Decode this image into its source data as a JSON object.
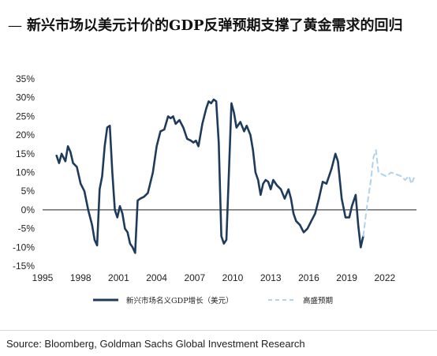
{
  "title_prefix": "—",
  "title": "新兴市场以美元计价的GDP反弹预期支撑了黄金需求的回归",
  "source": "Source: Bloomberg, Goldman Sachs Global Investment Research",
  "chart_data": {
    "type": "line",
    "ylim": [
      -15,
      35
    ],
    "yticks": [
      -15,
      -10,
      -5,
      0,
      5,
      10,
      15,
      20,
      25,
      30,
      35
    ],
    "ytick_labels": [
      "-15%",
      "-10%",
      "-5%",
      "0%",
      "5%",
      "10%",
      "15%",
      "20%",
      "25%",
      "30%",
      "35%"
    ],
    "xlim": [
      1995,
      2024.5
    ],
    "xticks": [
      1995,
      1998,
      2001,
      2004,
      2007,
      2010,
      2013,
      2016,
      2019,
      2022
    ],
    "xtick_labels": [
      "1995",
      "1998",
      "2001",
      "2004",
      "2007",
      "2010",
      "2013",
      "2016",
      "2019",
      "2022"
    ],
    "legend_position": "bottom",
    "series": [
      {
        "name": "新兴市场名义GDP增长（美元）",
        "style": "solid",
        "color": "#1f3b5c",
        "points": [
          [
            1996.1,
            14.5
          ],
          [
            1996.3,
            12.5
          ],
          [
            1996.5,
            15
          ],
          [
            1996.8,
            13
          ],
          [
            1997.0,
            17
          ],
          [
            1997.2,
            15.5
          ],
          [
            1997.4,
            12.5
          ],
          [
            1997.7,
            11.5
          ],
          [
            1998.0,
            7
          ],
          [
            1998.3,
            5
          ],
          [
            1998.6,
            0
          ],
          [
            1998.9,
            -4
          ],
          [
            1999.1,
            -8
          ],
          [
            1999.3,
            -9.5
          ],
          [
            1999.5,
            5.5
          ],
          [
            1999.7,
            9
          ],
          [
            1999.9,
            17
          ],
          [
            2000.1,
            22
          ],
          [
            2000.3,
            22.5
          ],
          [
            2000.5,
            10
          ],
          [
            2000.7,
            0
          ],
          [
            2000.9,
            -2
          ],
          [
            2001.1,
            1
          ],
          [
            2001.3,
            -1
          ],
          [
            2001.5,
            -5
          ],
          [
            2001.7,
            -6
          ],
          [
            2001.9,
            -9
          ],
          [
            2002.1,
            -10
          ],
          [
            2002.3,
            -11.5
          ],
          [
            2002.5,
            2.5
          ],
          [
            2002.7,
            3
          ],
          [
            2003.0,
            3.5
          ],
          [
            2003.3,
            4.5
          ],
          [
            2003.7,
            10
          ],
          [
            2004.0,
            17
          ],
          [
            2004.3,
            21
          ],
          [
            2004.6,
            21.5
          ],
          [
            2004.9,
            25
          ],
          [
            2005.1,
            24.5
          ],
          [
            2005.3,
            25
          ],
          [
            2005.5,
            23
          ],
          [
            2005.8,
            24
          ],
          [
            2006.1,
            22
          ],
          [
            2006.4,
            19
          ],
          [
            2006.7,
            18.5
          ],
          [
            2006.9,
            18
          ],
          [
            2007.1,
            18.5
          ],
          [
            2007.3,
            17
          ],
          [
            2007.6,
            23
          ],
          [
            2007.9,
            27
          ],
          [
            2008.1,
            29
          ],
          [
            2008.3,
            28.5
          ],
          [
            2008.5,
            29.5
          ],
          [
            2008.7,
            29
          ],
          [
            2008.9,
            18
          ],
          [
            2009.1,
            -7
          ],
          [
            2009.3,
            -9
          ],
          [
            2009.5,
            -8
          ],
          [
            2009.7,
            10
          ],
          [
            2009.9,
            28.5
          ],
          [
            2010.1,
            26
          ],
          [
            2010.3,
            22
          ],
          [
            2010.6,
            23.5
          ],
          [
            2010.9,
            21
          ],
          [
            2011.1,
            22.5
          ],
          [
            2011.4,
            20
          ],
          [
            2011.6,
            16
          ],
          [
            2011.8,
            10
          ],
          [
            2012.0,
            8
          ],
          [
            2012.2,
            4
          ],
          [
            2012.4,
            7
          ],
          [
            2012.6,
            8
          ],
          [
            2012.8,
            7.5
          ],
          [
            2013.0,
            5.5
          ],
          [
            2013.2,
            8
          ],
          [
            2013.5,
            6.5
          ],
          [
            2013.8,
            5.5
          ],
          [
            2014.1,
            3
          ],
          [
            2014.4,
            5.5
          ],
          [
            2014.6,
            3
          ],
          [
            2014.8,
            -1
          ],
          [
            2015.0,
            -3
          ],
          [
            2015.3,
            -4
          ],
          [
            2015.6,
            -6
          ],
          [
            2015.9,
            -5
          ],
          [
            2016.2,
            -3
          ],
          [
            2016.5,
            -1
          ],
          [
            2016.8,
            3
          ],
          [
            2017.1,
            7.5
          ],
          [
            2017.4,
            7
          ],
          [
            2017.8,
            11
          ],
          [
            2018.1,
            15
          ],
          [
            2018.3,
            13
          ],
          [
            2018.6,
            3
          ],
          [
            2018.9,
            -2
          ],
          [
            2019.2,
            -2
          ],
          [
            2019.4,
            1
          ],
          [
            2019.7,
            4
          ],
          [
            2019.9,
            -4
          ],
          [
            2020.1,
            -10
          ],
          [
            2020.3,
            -7
          ]
        ]
      },
      {
        "name": "高盛预期",
        "style": "dashed",
        "color": "#aed3ec",
        "points": [
          [
            2020.3,
            -7
          ],
          [
            2020.6,
            1
          ],
          [
            2020.9,
            8
          ],
          [
            2021.1,
            14
          ],
          [
            2021.3,
            16
          ],
          [
            2021.5,
            10
          ],
          [
            2021.8,
            9.5
          ],
          [
            2022.1,
            9
          ],
          [
            2022.5,
            10
          ],
          [
            2022.9,
            9.5
          ],
          [
            2023.3,
            9
          ],
          [
            2023.6,
            8
          ],
          [
            2023.9,
            9
          ],
          [
            2024.1,
            7
          ],
          [
            2024.3,
            8.5
          ]
        ]
      }
    ]
  }
}
